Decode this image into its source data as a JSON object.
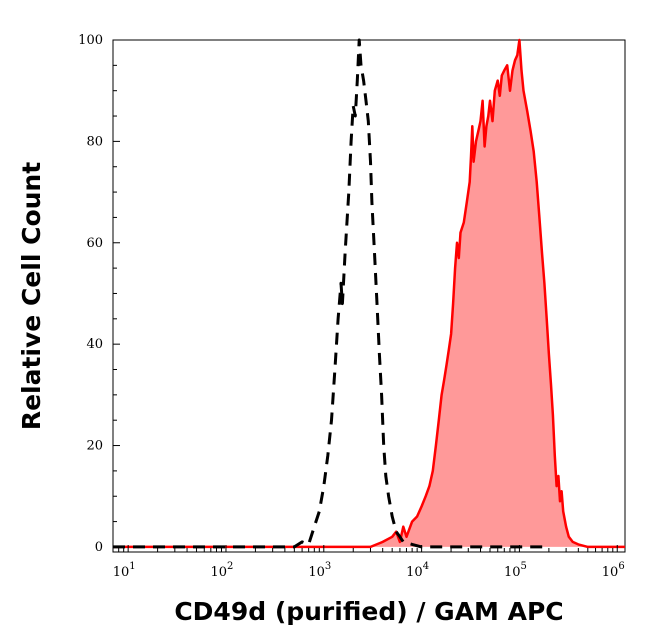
{
  "chart_data": {
    "type": "area",
    "title": "",
    "xlabel": "CD49d (purified) / GAM APC",
    "ylabel": "Relative Cell Count",
    "x_scale": "log",
    "xlim": [
      7,
      1200000
    ],
    "ylim": [
      -1,
      100
    ],
    "y_ticks": [
      0,
      20,
      40,
      60,
      80,
      100
    ],
    "x_ticks": [
      {
        "value": 10,
        "base": "10",
        "exp": "1"
      },
      {
        "value": 100,
        "base": "10",
        "exp": "2"
      },
      {
        "value": 1000,
        "base": "10",
        "exp": "3"
      },
      {
        "value": 10000,
        "base": "10",
        "exp": "4"
      },
      {
        "value": 100000,
        "base": "10",
        "exp": "5"
      },
      {
        "value": 1000000,
        "base": "10",
        "exp": "6"
      }
    ],
    "grid": false,
    "legend": "none",
    "series": [
      {
        "style": "dashed",
        "color": "#000000",
        "fill": "none",
        "points": [
          [
            7,
            0
          ],
          [
            500,
            0
          ],
          [
            600,
            1
          ],
          [
            700,
            0.5
          ],
          [
            800,
            4
          ],
          [
            900,
            7
          ],
          [
            1000,
            12
          ],
          [
            1100,
            18
          ],
          [
            1200,
            25
          ],
          [
            1300,
            35
          ],
          [
            1400,
            45
          ],
          [
            1500,
            52
          ],
          [
            1550,
            48
          ],
          [
            1650,
            58
          ],
          [
            1800,
            70
          ],
          [
            1900,
            80
          ],
          [
            2000,
            87
          ],
          [
            2100,
            85
          ],
          [
            2200,
            92
          ],
          [
            2300,
            100
          ],
          [
            2400,
            95
          ],
          [
            2550,
            92
          ],
          [
            2700,
            88
          ],
          [
            2850,
            84
          ],
          [
            3000,
            76
          ],
          [
            3100,
            68
          ],
          [
            3300,
            58
          ],
          [
            3500,
            48
          ],
          [
            3700,
            38
          ],
          [
            3900,
            30
          ],
          [
            4100,
            20
          ],
          [
            4300,
            14
          ],
          [
            4600,
            10
          ],
          [
            5000,
            6
          ],
          [
            5500,
            3
          ],
          [
            6000,
            2
          ],
          [
            6500,
            1
          ],
          [
            8000,
            0.5
          ],
          [
            10000,
            0
          ],
          [
            20000,
            0
          ],
          [
            40000,
            0
          ],
          [
            60000,
            0
          ],
          [
            100000,
            0
          ],
          [
            150000,
            0
          ],
          [
            200000,
            0
          ]
        ]
      },
      {
        "style": "solid",
        "color": "#ff0000",
        "fill": "#ff9999",
        "points": [
          [
            7,
            0
          ],
          [
            3000,
            0
          ],
          [
            4000,
            1
          ],
          [
            5000,
            2
          ],
          [
            5500,
            3
          ],
          [
            6000,
            1
          ],
          [
            6500,
            4
          ],
          [
            7000,
            2
          ],
          [
            8000,
            5
          ],
          [
            9000,
            6
          ],
          [
            10000,
            8
          ],
          [
            11000,
            10
          ],
          [
            12000,
            12
          ],
          [
            13000,
            15
          ],
          [
            14000,
            20
          ],
          [
            15000,
            25
          ],
          [
            16000,
            30
          ],
          [
            17000,
            33
          ],
          [
            18000,
            36
          ],
          [
            19000,
            39
          ],
          [
            20000,
            42
          ],
          [
            21000,
            48
          ],
          [
            22000,
            55
          ],
          [
            23000,
            60
          ],
          [
            24000,
            57
          ],
          [
            25000,
            62
          ],
          [
            27000,
            64
          ],
          [
            29000,
            68
          ],
          [
            31000,
            72
          ],
          [
            32000,
            77
          ],
          [
            33000,
            83
          ],
          [
            34000,
            76
          ],
          [
            36000,
            80
          ],
          [
            38000,
            82
          ],
          [
            40000,
            84
          ],
          [
            42000,
            88
          ],
          [
            44000,
            79
          ],
          [
            46000,
            83
          ],
          [
            48000,
            85
          ],
          [
            50000,
            88
          ],
          [
            53000,
            84
          ],
          [
            56000,
            90
          ],
          [
            60000,
            92
          ],
          [
            63000,
            89
          ],
          [
            66000,
            93
          ],
          [
            70000,
            94
          ],
          [
            75000,
            95
          ],
          [
            80000,
            90
          ],
          [
            85000,
            94
          ],
          [
            90000,
            96
          ],
          [
            95000,
            97
          ],
          [
            100000,
            100
          ],
          [
            105000,
            94
          ],
          [
            110000,
            90
          ],
          [
            120000,
            86
          ],
          [
            130000,
            82
          ],
          [
            140000,
            78
          ],
          [
            150000,
            72
          ],
          [
            160000,
            65
          ],
          [
            170000,
            58
          ],
          [
            180000,
            52
          ],
          [
            190000,
            45
          ],
          [
            200000,
            38
          ],
          [
            210000,
            32
          ],
          [
            220000,
            26
          ],
          [
            230000,
            18
          ],
          [
            240000,
            12
          ],
          [
            250000,
            14
          ],
          [
            260000,
            9
          ],
          [
            270000,
            11
          ],
          [
            280000,
            7
          ],
          [
            300000,
            4
          ],
          [
            320000,
            2
          ],
          [
            350000,
            1
          ],
          [
            400000,
            0.5
          ],
          [
            500000,
            0
          ],
          [
            600000,
            0
          ],
          [
            800000,
            0
          ],
          [
            1200000,
            0
          ]
        ]
      }
    ]
  }
}
